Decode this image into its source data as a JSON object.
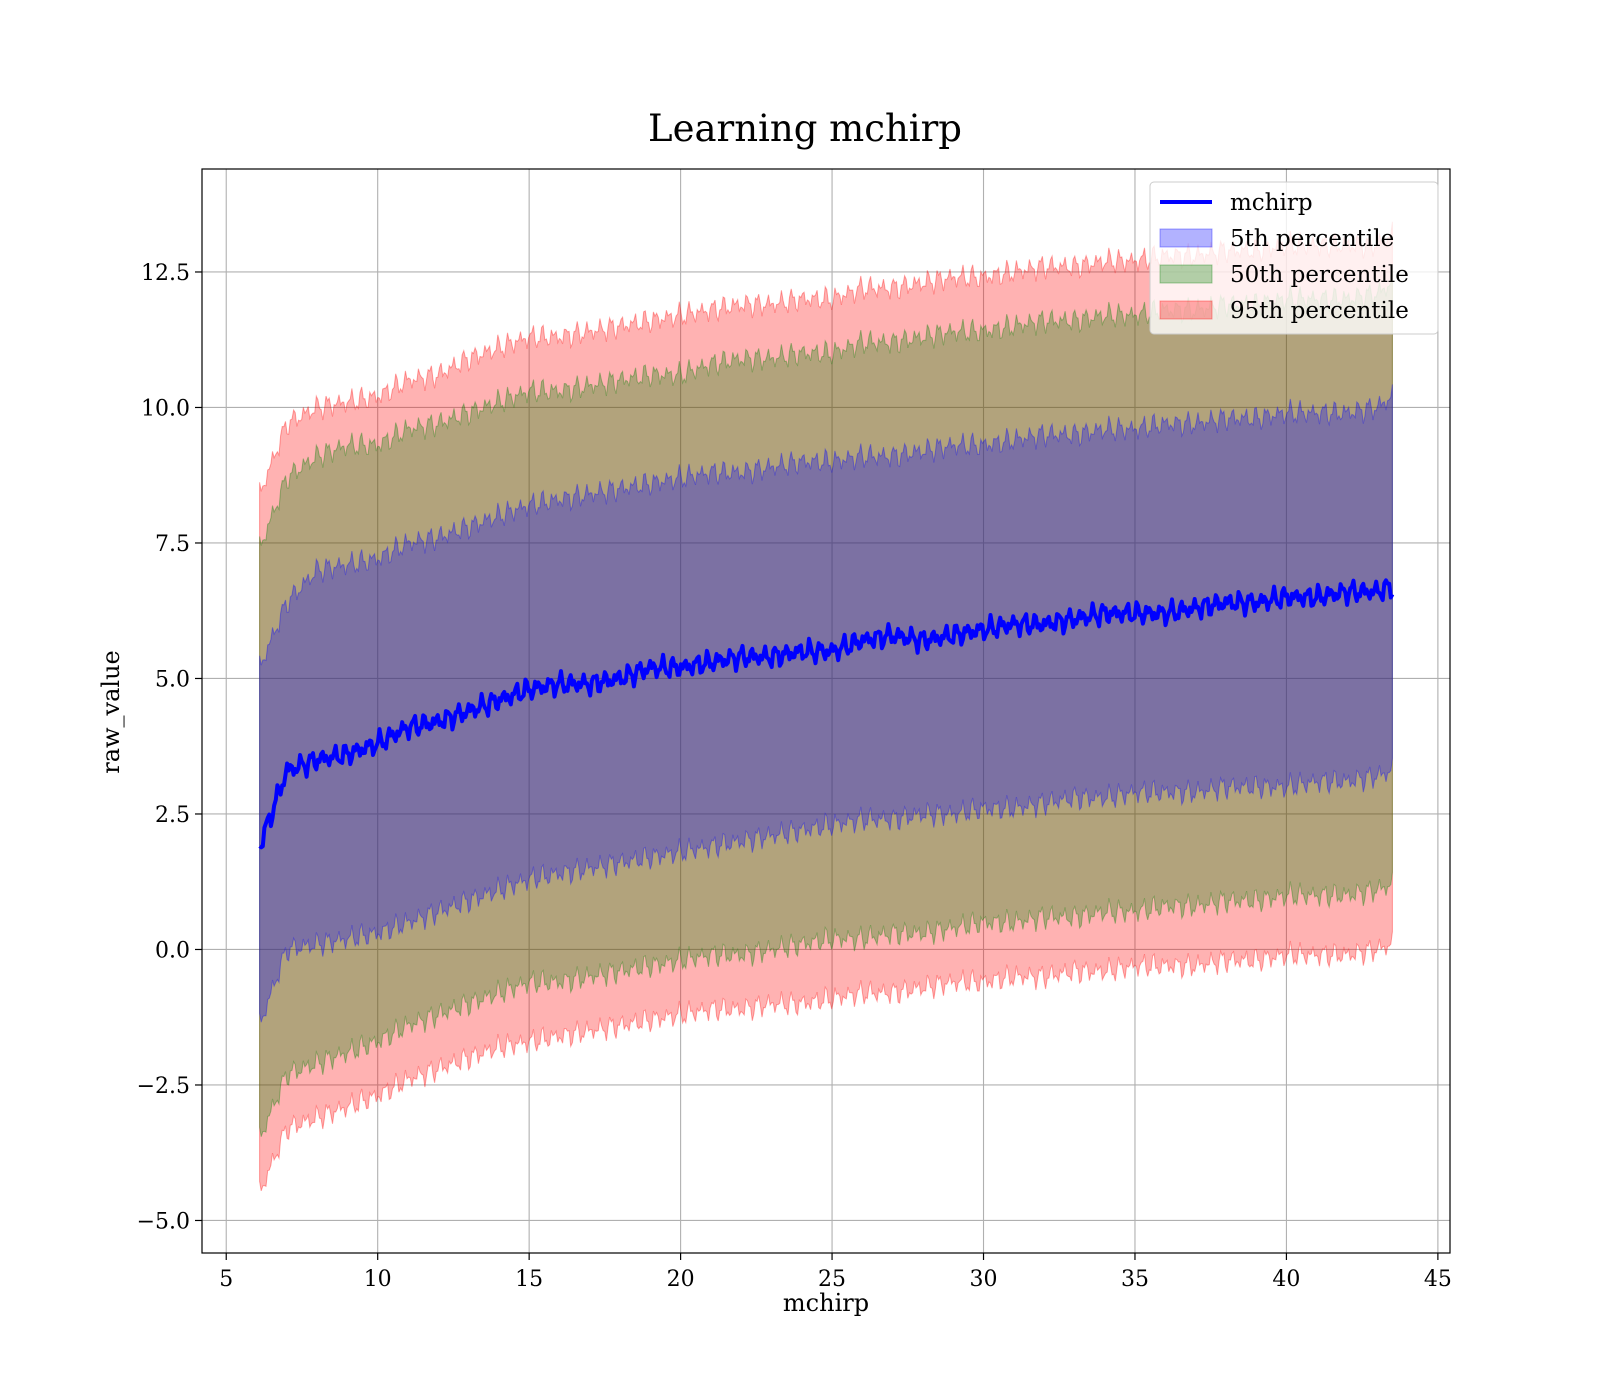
{
  "chart_data": {
    "type": "area",
    "title": "Learning mchirp",
    "xlabel": "mchirp",
    "ylabel": "raw_value",
    "xlim": [
      4.2,
      45.4
    ],
    "ylim": [
      -5.6,
      14.4
    ],
    "xticks": [
      5,
      10,
      15,
      20,
      25,
      30,
      35,
      40,
      45
    ],
    "xtick_labels": [
      "5",
      "10",
      "15",
      "20",
      "25",
      "30",
      "35",
      "40",
      "45"
    ],
    "yticks": [
      -5.0,
      -2.5,
      0.0,
      2.5,
      5.0,
      7.5,
      10.0,
      12.5
    ],
    "ytick_labels": [
      "−5.0",
      "−2.5",
      "0.0",
      "2.5",
      "5.0",
      "7.5",
      "10.0",
      "12.5"
    ],
    "grid": true,
    "legend_position": "top-right",
    "x": [
      6.1,
      7,
      8,
      9,
      10,
      11,
      12,
      13,
      14,
      15,
      16,
      17,
      18,
      19,
      20,
      21,
      22,
      23,
      24,
      25,
      26,
      27,
      28,
      29,
      30,
      31,
      32,
      33,
      34,
      35,
      36,
      37,
      38,
      39,
      40,
      41,
      42,
      43,
      43.5
    ],
    "series": [
      {
        "name": "mchirp",
        "kind": "line",
        "color": "#0000ff",
        "values": [
          1.9,
          3.3,
          3.5,
          3.6,
          3.8,
          4.1,
          4.2,
          4.4,
          4.6,
          4.8,
          4.9,
          4.9,
          5.0,
          5.2,
          5.2,
          5.3,
          5.4,
          5.4,
          5.5,
          5.5,
          5.7,
          5.8,
          5.7,
          5.8,
          5.9,
          6.0,
          6.0,
          6.1,
          6.2,
          6.2,
          6.2,
          6.3,
          6.4,
          6.4,
          6.5,
          6.5,
          6.6,
          6.6,
          6.7
        ]
      },
      {
        "name": "5th percentile",
        "kind": "band",
        "color": "#0000ff",
        "lower": [
          -1.4,
          0.0,
          0.1,
          0.2,
          0.3,
          0.5,
          0.7,
          0.9,
          1.1,
          1.3,
          1.4,
          1.5,
          1.6,
          1.7,
          1.8,
          1.9,
          2.0,
          2.1,
          2.2,
          2.3,
          2.4,
          2.4,
          2.5,
          2.5,
          2.6,
          2.6,
          2.7,
          2.8,
          2.8,
          2.9,
          2.9,
          2.9,
          3.0,
          3.0,
          3.0,
          3.1,
          3.1,
          3.2,
          3.3
        ],
        "upper": [
          5.2,
          6.4,
          7.0,
          7.1,
          7.2,
          7.5,
          7.6,
          7.8,
          8.0,
          8.2,
          8.3,
          8.4,
          8.5,
          8.6,
          8.7,
          8.8,
          8.8,
          8.9,
          9.0,
          9.0,
          9.1,
          9.1,
          9.2,
          9.3,
          9.3,
          9.4,
          9.5,
          9.5,
          9.6,
          9.6,
          9.7,
          9.7,
          9.8,
          9.8,
          9.9,
          9.9,
          9.9,
          10.0,
          10.2
        ]
      },
      {
        "name": "50th percentile",
        "kind": "band",
        "color": "#008000",
        "lower": [
          -3.5,
          -2.3,
          -2.1,
          -1.9,
          -1.7,
          -1.4,
          -1.2,
          -1.0,
          -0.8,
          -0.6,
          -0.6,
          -0.5,
          -0.4,
          -0.3,
          -0.2,
          -0.1,
          -0.1,
          0.0,
          0.1,
          0.2,
          0.2,
          0.3,
          0.3,
          0.4,
          0.5,
          0.5,
          0.6,
          0.6,
          0.7,
          0.7,
          0.8,
          0.8,
          0.9,
          0.9,
          1.0,
          1.0,
          1.0,
          1.1,
          1.2
        ],
        "upper": [
          7.4,
          8.7,
          9.1,
          9.3,
          9.3,
          9.6,
          9.7,
          9.9,
          10.1,
          10.3,
          10.3,
          10.4,
          10.5,
          10.6,
          10.6,
          10.8,
          10.9,
          10.9,
          11.0,
          11.0,
          11.2,
          11.2,
          11.3,
          11.4,
          11.4,
          11.5,
          11.6,
          11.6,
          11.7,
          11.7,
          11.8,
          11.8,
          11.9,
          11.9,
          12.0,
          12.0,
          12.0,
          12.1,
          12.3
        ]
      },
      {
        "name": "95th percentile",
        "kind": "band",
        "color": "#ff0000",
        "lower": [
          -4.5,
          -3.3,
          -3.1,
          -2.9,
          -2.7,
          -2.4,
          -2.2,
          -2.0,
          -1.8,
          -1.7,
          -1.6,
          -1.5,
          -1.4,
          -1.3,
          -1.2,
          -1.1,
          -1.1,
          -1.0,
          -1.0,
          -0.9,
          -0.8,
          -0.8,
          -0.7,
          -0.6,
          -0.6,
          -0.5,
          -0.5,
          -0.4,
          -0.4,
          -0.3,
          -0.3,
          -0.3,
          -0.2,
          -0.2,
          -0.1,
          -0.1,
          -0.1,
          0.0,
          0.1
        ],
        "upper": [
          8.4,
          9.7,
          10.0,
          10.1,
          10.2,
          10.5,
          10.6,
          10.9,
          11.1,
          11.3,
          11.3,
          11.4,
          11.5,
          11.6,
          11.7,
          11.8,
          11.9,
          11.9,
          12.0,
          12.0,
          12.2,
          12.2,
          12.3,
          12.4,
          12.4,
          12.5,
          12.6,
          12.6,
          12.7,
          12.7,
          12.8,
          12.8,
          12.9,
          12.9,
          13.0,
          13.0,
          13.0,
          13.0,
          13.2
        ]
      }
    ]
  }
}
